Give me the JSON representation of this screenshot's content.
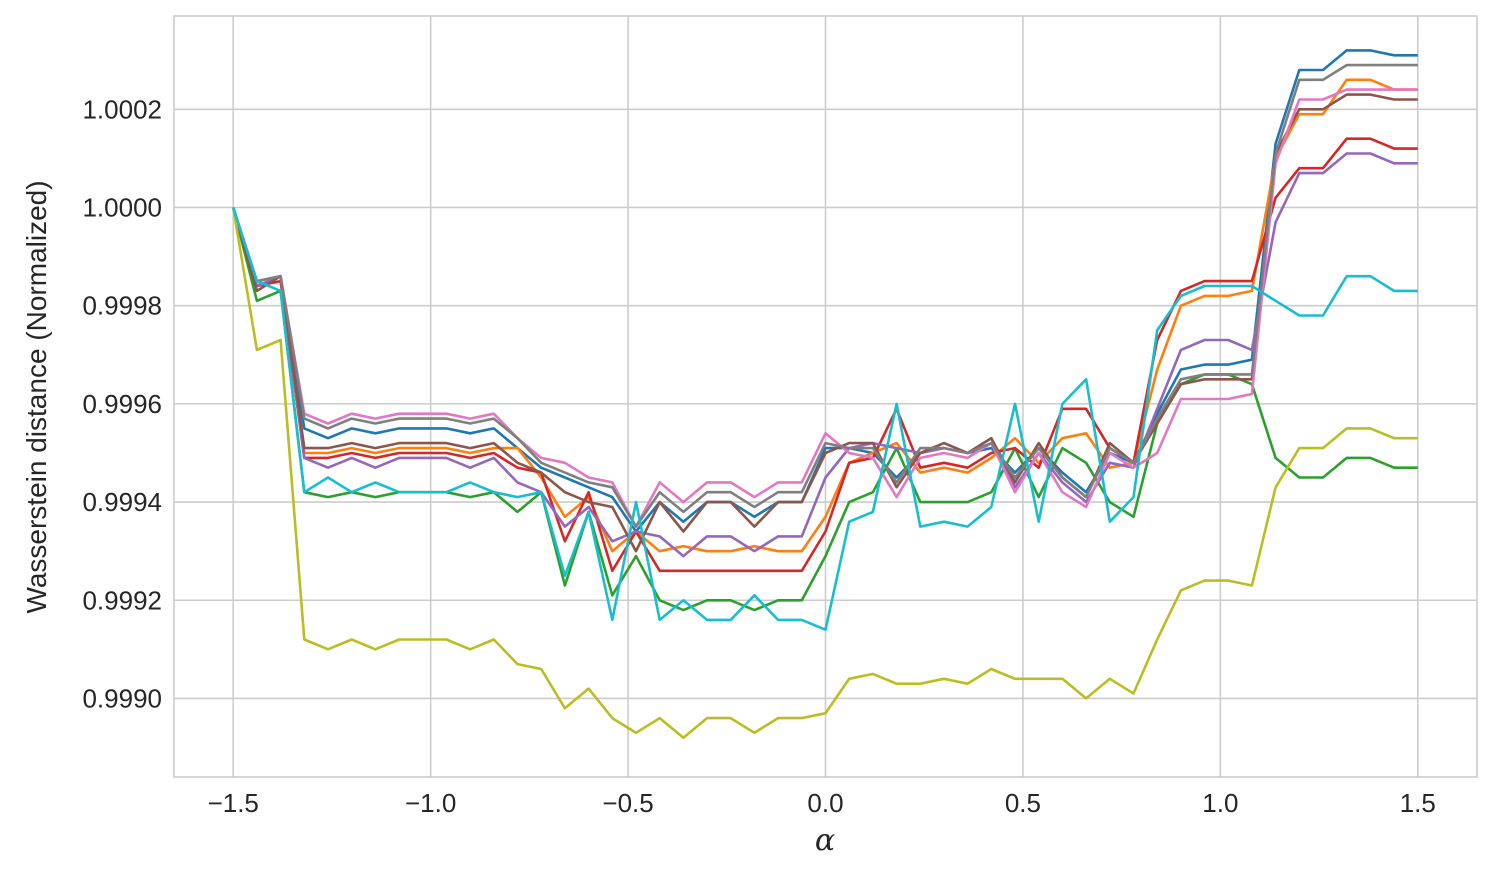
{
  "chart_data": {
    "type": "line",
    "title": "",
    "xlabel": "α",
    "ylabel": "Wasserstein distance (Normalized)",
    "xlim": [
      -1.65,
      1.65
    ],
    "ylim": [
      0.99884,
      1.00039
    ],
    "xticks": [
      -1.5,
      -1.0,
      -0.5,
      0.0,
      0.5,
      1.0,
      1.5
    ],
    "xtick_labels": [
      "−1.5",
      "−1.0",
      "−0.5",
      "0.0",
      "0.5",
      "1.0",
      "1.5"
    ],
    "yticks": [
      0.999,
      0.9992,
      0.9994,
      0.9996,
      0.9998,
      1.0,
      1.0002
    ],
    "ytick_labels": [
      "0.9990",
      "0.9992",
      "0.9994",
      "0.9996",
      "0.9998",
      "1.0000",
      "1.0002"
    ],
    "grid": true,
    "legend": "none",
    "x": [
      -1.5,
      -1.44,
      -1.38,
      -1.32,
      -1.26,
      -1.2,
      -1.14,
      -1.08,
      -1.02,
      -0.96,
      -0.9,
      -0.84,
      -0.78,
      -0.72,
      -0.66,
      -0.6,
      -0.54,
      -0.48,
      -0.42,
      -0.36,
      -0.3,
      -0.24,
      -0.18,
      -0.12,
      -0.06,
      0.0,
      0.06,
      0.12,
      0.18,
      0.24,
      0.3,
      0.36,
      0.42,
      0.48,
      0.54,
      0.6,
      0.66,
      0.72,
      0.78,
      0.84,
      0.9,
      0.96,
      1.02,
      1.08,
      1.14,
      1.2,
      1.26,
      1.32,
      1.38,
      1.44,
      1.5
    ],
    "series": [
      {
        "color": "#1f77b4",
        "values": [
          1.0,
          0.99984,
          0.99986,
          0.99955,
          0.99953,
          0.99955,
          0.99954,
          0.99955,
          0.99955,
          0.99955,
          0.99954,
          0.99955,
          0.99951,
          0.99947,
          0.99945,
          0.99943,
          0.99941,
          0.99934,
          0.9994,
          0.99936,
          0.9994,
          0.9994,
          0.99937,
          0.9994,
          0.9994,
          0.99951,
          0.99951,
          0.9995,
          0.99945,
          0.9995,
          0.99951,
          0.9995,
          0.99951,
          0.99946,
          0.99951,
          0.99946,
          0.99942,
          0.9995,
          0.99948,
          0.99958,
          0.99967,
          0.99968,
          0.99968,
          0.99969,
          1.00013,
          1.00028,
          1.00028,
          1.00032,
          1.00032,
          1.00031,
          1.00031
        ]
      },
      {
        "color": "#ff7f0e",
        "values": [
          1.0,
          0.99984,
          0.99986,
          0.9995,
          0.9995,
          0.99951,
          0.9995,
          0.99951,
          0.99951,
          0.99951,
          0.9995,
          0.99951,
          0.99951,
          0.99945,
          0.99937,
          0.99941,
          0.9993,
          0.99934,
          0.9993,
          0.99931,
          0.9993,
          0.9993,
          0.99931,
          0.9993,
          0.9993,
          0.99937,
          0.99948,
          0.9995,
          0.99952,
          0.99946,
          0.99947,
          0.99946,
          0.99949,
          0.99953,
          0.99948,
          0.99953,
          0.99954,
          0.99947,
          0.99948,
          0.99967,
          0.9998,
          0.99982,
          0.99982,
          0.99983,
          1.0001,
          1.00019,
          1.00019,
          1.00026,
          1.00026,
          1.00024,
          1.00024
        ]
      },
      {
        "color": "#2ca02c",
        "values": [
          1.0,
          0.99981,
          0.99983,
          0.99942,
          0.99941,
          0.99942,
          0.99941,
          0.99942,
          0.99942,
          0.99942,
          0.99941,
          0.99942,
          0.99938,
          0.99942,
          0.99923,
          0.99938,
          0.99921,
          0.99929,
          0.9992,
          0.99918,
          0.9992,
          0.9992,
          0.99918,
          0.9992,
          0.9992,
          0.99929,
          0.9994,
          0.99942,
          0.99951,
          0.9994,
          0.9994,
          0.9994,
          0.99942,
          0.99951,
          0.99941,
          0.99951,
          0.99948,
          0.9994,
          0.99937,
          0.99956,
          0.99964,
          0.99966,
          0.99966,
          0.99964,
          0.99949,
          0.99945,
          0.99945,
          0.99949,
          0.99949,
          0.99947,
          0.99947
        ]
      },
      {
        "color": "#d62728",
        "values": [
          1.0,
          0.99984,
          0.99985,
          0.99949,
          0.99949,
          0.9995,
          0.99949,
          0.9995,
          0.9995,
          0.9995,
          0.99949,
          0.9995,
          0.99947,
          0.99946,
          0.99932,
          0.99942,
          0.99926,
          0.99934,
          0.99926,
          0.99926,
          0.99926,
          0.99926,
          0.99926,
          0.99926,
          0.99926,
          0.99934,
          0.99948,
          0.99949,
          0.99959,
          0.99947,
          0.99948,
          0.99947,
          0.9995,
          0.99951,
          0.99947,
          0.99959,
          0.99959,
          0.99951,
          0.99948,
          0.99973,
          0.99983,
          0.99985,
          0.99985,
          0.99985,
          1.00002,
          1.00008,
          1.00008,
          1.00014,
          1.00014,
          1.00012,
          1.00012
        ]
      },
      {
        "color": "#9467bd",
        "values": [
          1.0,
          0.99984,
          0.99986,
          0.99949,
          0.99947,
          0.99949,
          0.99947,
          0.99949,
          0.99949,
          0.99949,
          0.99947,
          0.99949,
          0.99944,
          0.99942,
          0.99935,
          0.99939,
          0.99932,
          0.99934,
          0.99933,
          0.99929,
          0.99933,
          0.99933,
          0.9993,
          0.99933,
          0.99933,
          0.99945,
          0.99951,
          0.99952,
          0.99951,
          0.9995,
          0.99951,
          0.9995,
          0.99953,
          0.99943,
          0.9995,
          0.99944,
          0.9994,
          0.99948,
          0.99947,
          0.99959,
          0.99971,
          0.99973,
          0.99973,
          0.99971,
          0.99997,
          1.00007,
          1.00007,
          1.00011,
          1.00011,
          1.00009,
          1.00009
        ]
      },
      {
        "color": "#8c564b",
        "values": [
          1.0,
          0.99983,
          0.99986,
          0.99951,
          0.99951,
          0.99952,
          0.99951,
          0.99952,
          0.99952,
          0.99952,
          0.99951,
          0.99952,
          0.99948,
          0.99946,
          0.99942,
          0.9994,
          0.99939,
          0.9993,
          0.9994,
          0.99934,
          0.9994,
          0.9994,
          0.99935,
          0.9994,
          0.9994,
          0.9995,
          0.99952,
          0.99952,
          0.99943,
          0.9995,
          0.99952,
          0.9995,
          0.99953,
          0.99944,
          0.99952,
          0.99945,
          0.99941,
          0.99952,
          0.99948,
          0.99956,
          0.99964,
          0.99965,
          0.99965,
          0.99965,
          1.00011,
          1.0002,
          1.0002,
          1.00023,
          1.00023,
          1.00022,
          1.00022
        ]
      },
      {
        "color": "#e377c2",
        "values": [
          1.0,
          0.99985,
          0.99986,
          0.99958,
          0.99956,
          0.99958,
          0.99957,
          0.99958,
          0.99958,
          0.99958,
          0.99957,
          0.99958,
          0.99953,
          0.99949,
          0.99948,
          0.99945,
          0.99944,
          0.99935,
          0.99944,
          0.9994,
          0.99944,
          0.99944,
          0.99941,
          0.99944,
          0.99944,
          0.99954,
          0.9995,
          0.99949,
          0.99941,
          0.99949,
          0.9995,
          0.99949,
          0.99952,
          0.99942,
          0.9995,
          0.99942,
          0.99939,
          0.9995,
          0.99947,
          0.9995,
          0.99961,
          0.99961,
          0.99961,
          0.99962,
          1.00009,
          1.00022,
          1.00022,
          1.00024,
          1.00024,
          1.00024,
          1.00024
        ]
      },
      {
        "color": "#7f7f7f",
        "values": [
          1.0,
          0.99985,
          0.99986,
          0.99957,
          0.99955,
          0.99957,
          0.99956,
          0.99957,
          0.99957,
          0.99957,
          0.99956,
          0.99957,
          0.99953,
          0.99948,
          0.99946,
          0.99944,
          0.99943,
          0.99935,
          0.99942,
          0.99938,
          0.99942,
          0.99942,
          0.99939,
          0.99942,
          0.99942,
          0.99952,
          0.99951,
          0.99951,
          0.99944,
          0.99951,
          0.99951,
          0.9995,
          0.99952,
          0.99945,
          0.99951,
          0.99945,
          0.99941,
          0.99951,
          0.99948,
          0.99957,
          0.99965,
          0.99966,
          0.99966,
          0.99966,
          1.00011,
          1.00026,
          1.00026,
          1.00029,
          1.00029,
          1.00029,
          1.00029
        ]
      },
      {
        "color": "#bcbd22",
        "values": [
          1.0,
          0.99971,
          0.99973,
          0.99912,
          0.9991,
          0.99912,
          0.9991,
          0.99912,
          0.99912,
          0.99912,
          0.9991,
          0.99912,
          0.99907,
          0.99906,
          0.99898,
          0.99902,
          0.99896,
          0.99893,
          0.99896,
          0.99892,
          0.99896,
          0.99896,
          0.99893,
          0.99896,
          0.99896,
          0.99897,
          0.99904,
          0.99905,
          0.99903,
          0.99903,
          0.99904,
          0.99903,
          0.99906,
          0.99904,
          0.99904,
          0.99904,
          0.999,
          0.99904,
          0.99901,
          0.99912,
          0.99922,
          0.99924,
          0.99924,
          0.99923,
          0.99943,
          0.99951,
          0.99951,
          0.99955,
          0.99955,
          0.99953,
          0.99953
        ]
      },
      {
        "color": "#17becf",
        "values": [
          1.0,
          0.99985,
          0.99983,
          0.99942,
          0.99945,
          0.99942,
          0.99944,
          0.99942,
          0.99942,
          0.99942,
          0.99944,
          0.99942,
          0.99941,
          0.99942,
          0.99925,
          0.99938,
          0.99916,
          0.9994,
          0.99916,
          0.9992,
          0.99916,
          0.99916,
          0.99921,
          0.99916,
          0.99916,
          0.99914,
          0.99936,
          0.99938,
          0.9996,
          0.99935,
          0.99936,
          0.99935,
          0.99939,
          0.9996,
          0.99936,
          0.9996,
          0.99965,
          0.99936,
          0.99941,
          0.99975,
          0.99982,
          0.99984,
          0.99984,
          0.99984,
          0.99981,
          0.99978,
          0.99978,
          0.99986,
          0.99986,
          0.99983,
          0.99983
        ]
      }
    ]
  }
}
